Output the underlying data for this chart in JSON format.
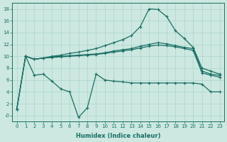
{
  "xlabel": "Humidex (Indice chaleur)",
  "bg_color": "#cce8e0",
  "line_color": "#1a6e64",
  "grid_color": "#aad4cc",
  "ylim": [
    -1,
    19
  ],
  "xlim": [
    -0.5,
    23.5
  ],
  "yticks": [
    0,
    2,
    4,
    6,
    8,
    10,
    12,
    14,
    16,
    18
  ],
  "ytick_labels": [
    "-0",
    "2",
    "4",
    "6",
    "8",
    "10",
    "12",
    "14",
    "16",
    "18"
  ],
  "xticks": [
    0,
    1,
    2,
    3,
    4,
    5,
    6,
    7,
    8,
    9,
    10,
    11,
    12,
    13,
    14,
    15,
    16,
    17,
    18,
    19,
    20,
    21,
    22,
    23
  ],
  "line_top_x": [
    0,
    1,
    2,
    3,
    4,
    5,
    6,
    7,
    8,
    9,
    10,
    11,
    12,
    13,
    14,
    15,
    16,
    17,
    18,
    19,
    20,
    21,
    22,
    23
  ],
  "line_top_y": [
    1,
    10,
    9.5,
    9.7,
    10.0,
    10.2,
    10.5,
    10.7,
    11.0,
    11.3,
    11.8,
    12.3,
    12.8,
    13.5,
    15.0,
    18.0,
    17.9,
    16.7,
    14.3,
    13.0,
    11.5,
    8.0,
    7.5,
    7.0
  ],
  "line_mid1_x": [
    0,
    1,
    2,
    3,
    4,
    5,
    6,
    7,
    8,
    9,
    10,
    11,
    12,
    13,
    14,
    15,
    16,
    17,
    18,
    19,
    20,
    21,
    22,
    23
  ],
  "line_mid1_y": [
    1,
    10,
    9.5,
    9.7,
    9.9,
    10.0,
    10.1,
    10.2,
    10.3,
    10.4,
    10.6,
    10.9,
    11.1,
    11.3,
    11.7,
    12.0,
    12.3,
    12.1,
    11.8,
    11.5,
    11.3,
    7.5,
    7.0,
    6.8
  ],
  "line_mid2_x": [
    0,
    1,
    2,
    3,
    4,
    5,
    6,
    7,
    8,
    9,
    10,
    11,
    12,
    13,
    14,
    15,
    16,
    17,
    18,
    19,
    20,
    21,
    22,
    23
  ],
  "line_mid2_y": [
    1,
    10,
    9.5,
    9.7,
    9.8,
    9.9,
    10.0,
    10.1,
    10.2,
    10.3,
    10.5,
    10.7,
    10.9,
    11.1,
    11.4,
    11.7,
    11.9,
    11.8,
    11.6,
    11.3,
    11.0,
    7.2,
    6.8,
    6.5
  ],
  "line_bot_x": [
    1,
    2,
    3,
    4,
    5,
    6,
    7,
    8,
    9,
    10,
    11,
    12,
    13,
    14,
    15,
    16,
    17,
    18,
    19,
    20,
    21,
    22,
    23
  ],
  "line_bot_y": [
    10,
    6.8,
    7.0,
    5.8,
    4.5,
    4.0,
    -0.3,
    1.3,
    7.0,
    6.0,
    5.8,
    5.7,
    5.5,
    5.5,
    5.5,
    5.5,
    5.5,
    5.5,
    5.5,
    5.5,
    5.3,
    4.0,
    4.0
  ],
  "marker": "+",
  "markersize": 3,
  "linewidth": 0.9
}
